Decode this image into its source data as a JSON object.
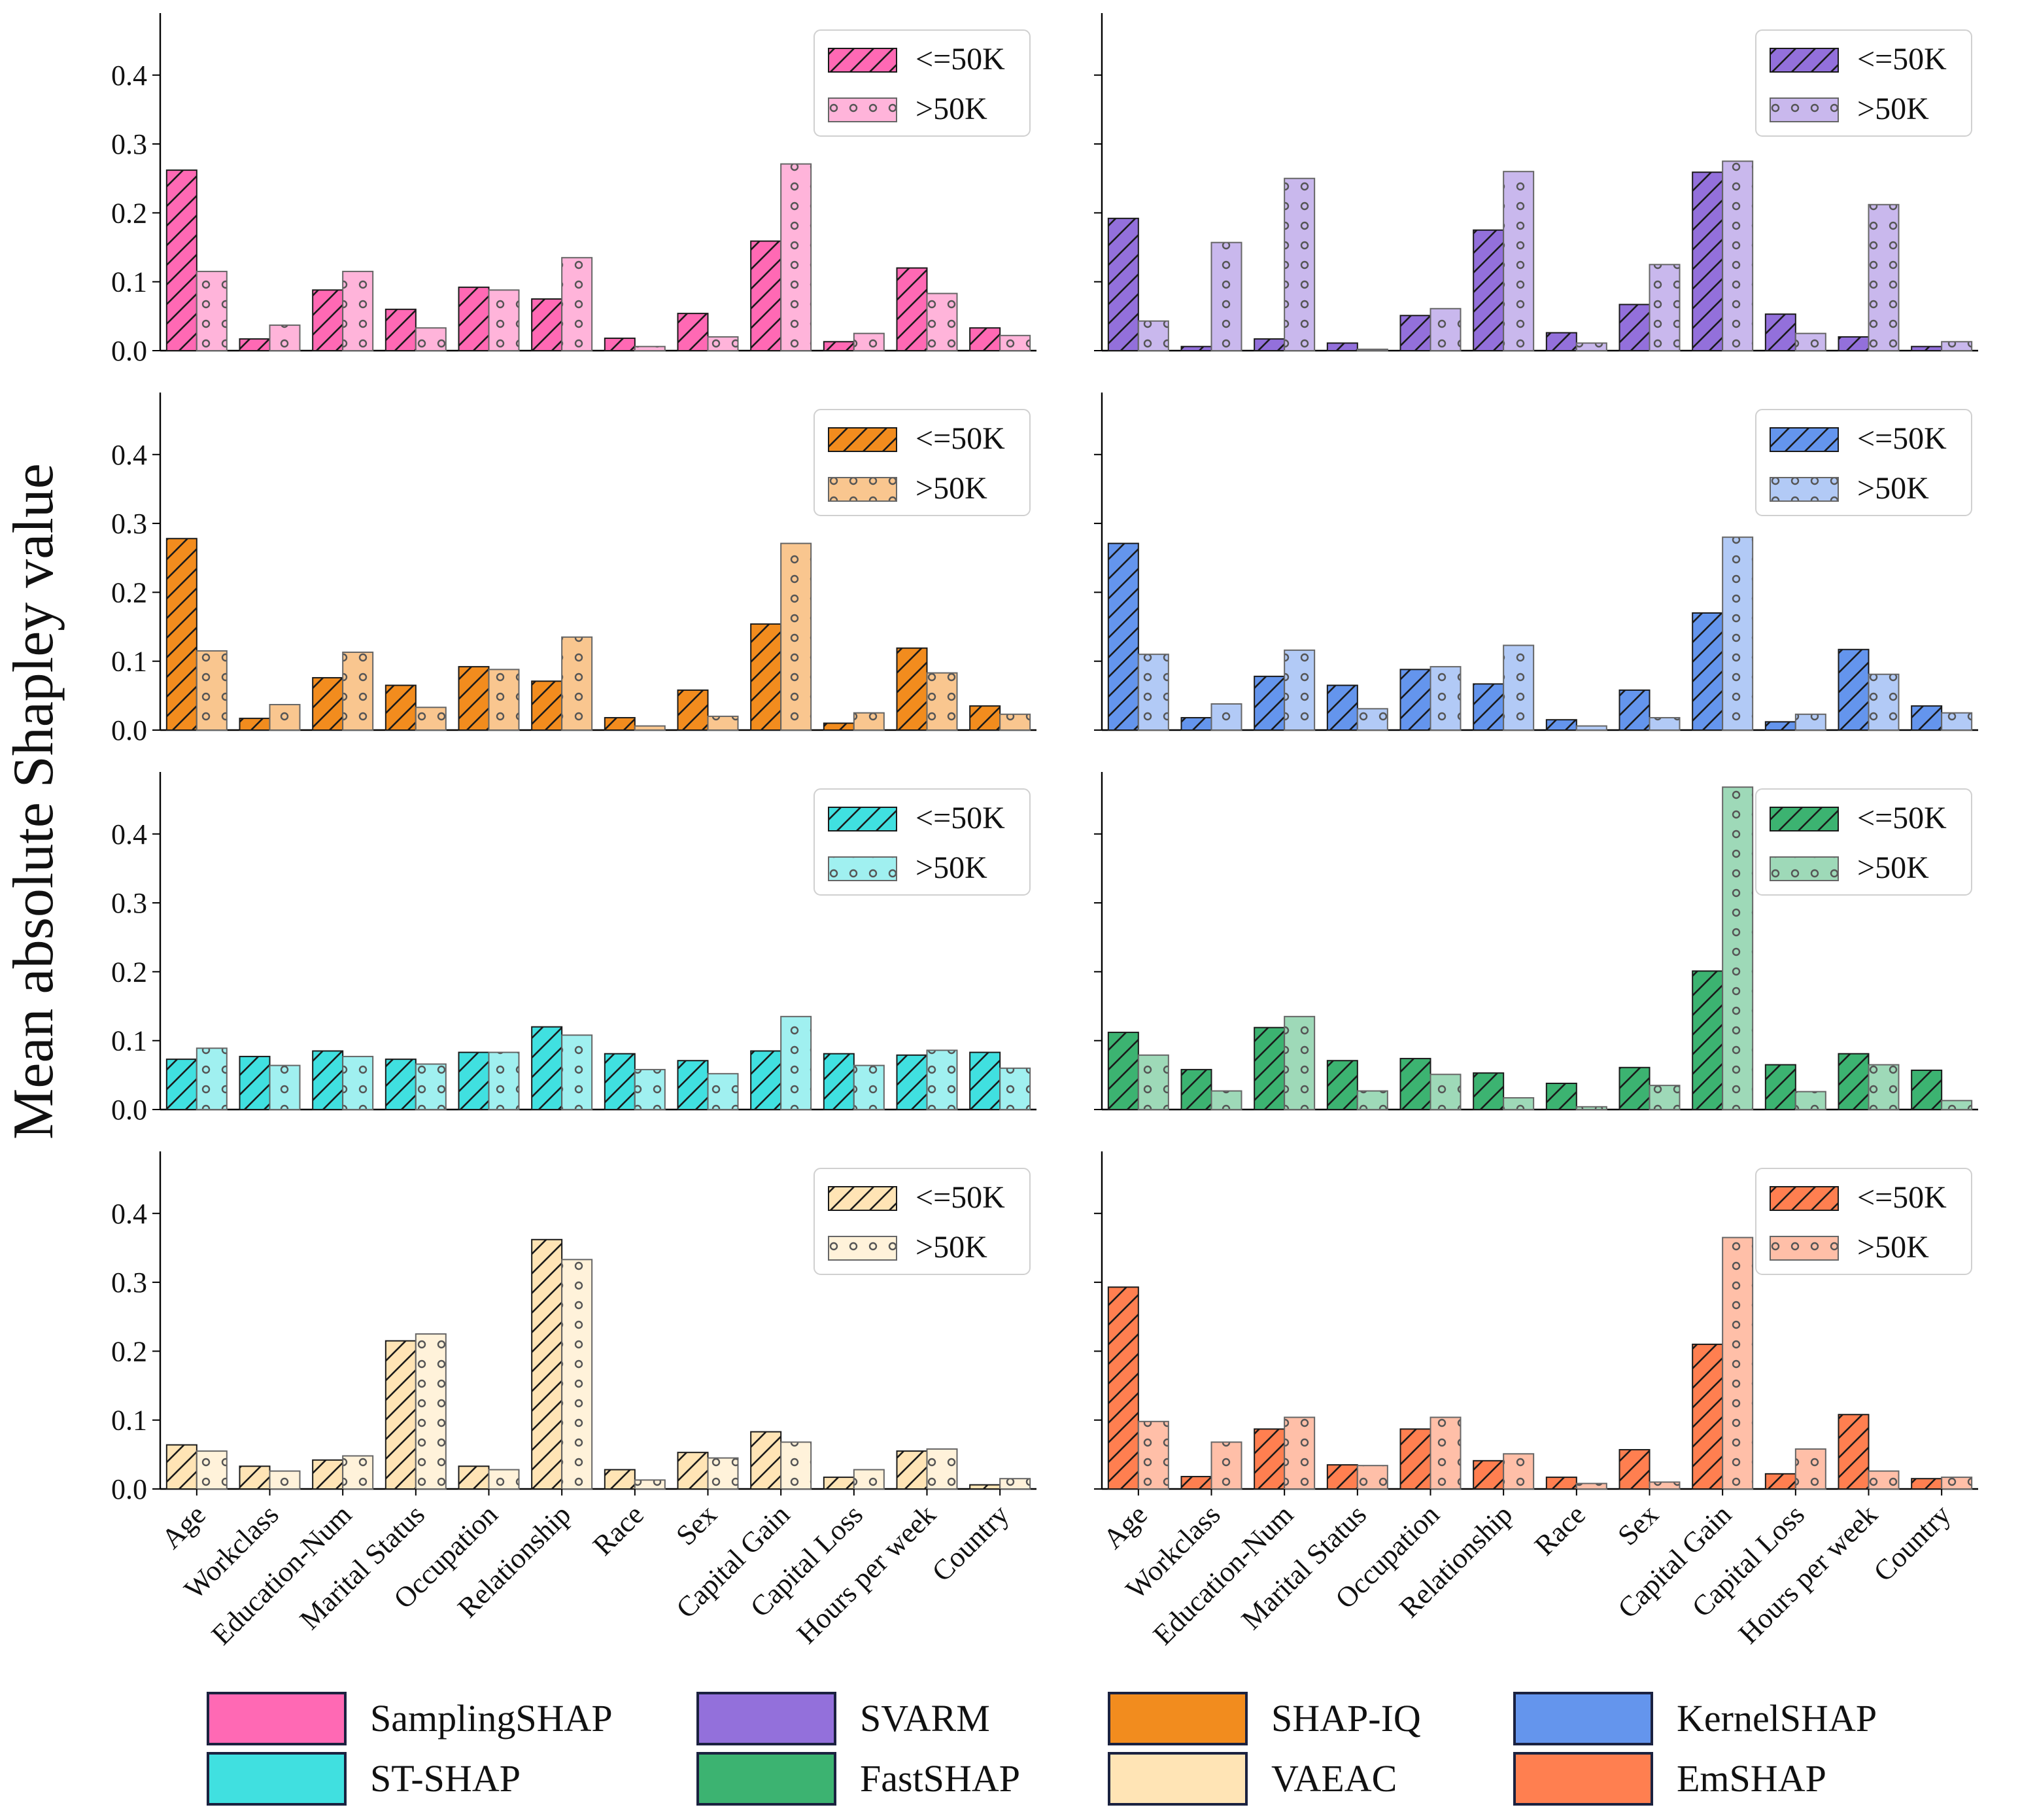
{
  "chart_data": {
    "type": "bar",
    "ylabel": "Mean absolute Shapley value",
    "categories": [
      "Age",
      "Workclass",
      "Education-Num",
      "Marital Status",
      "Occupation",
      "Relationship",
      "Race",
      "Sex",
      "Capital Gain",
      "Capital Loss",
      "Hours per week",
      "Country"
    ],
    "ylim": [
      0,
      0.49
    ],
    "yticks": [
      "0.0",
      "0.1",
      "0.2",
      "0.3",
      "0.4"
    ],
    "legend_labels": [
      "<=50K",
      ">50K"
    ],
    "methods": [
      {
        "name": "SamplingSHAP",
        "color": "#ff69b4",
        "series": [
          {
            "name": "<=50K",
            "values": [
              0.262,
              0.017,
              0.088,
              0.06,
              0.092,
              0.075,
              0.018,
              0.054,
              0.159,
              0.013,
              0.12,
              0.033
            ]
          },
          {
            "name": ">50K",
            "values": [
              0.115,
              0.037,
              0.115,
              0.033,
              0.088,
              0.135,
              0.006,
              0.02,
              0.271,
              0.025,
              0.083,
              0.022
            ]
          }
        ]
      },
      {
        "name": "SVARM",
        "color": "#9370db",
        "series": [
          {
            "name": "<=50K",
            "values": [
              0.192,
              0.006,
              0.017,
              0.011,
              0.051,
              0.175,
              0.026,
              0.067,
              0.259,
              0.053,
              0.02,
              0.006
            ]
          },
          {
            "name": ">50K",
            "values": [
              0.043,
              0.157,
              0.25,
              0.002,
              0.061,
              0.26,
              0.011,
              0.125,
              0.275,
              0.025,
              0.212,
              0.013
            ]
          }
        ]
      },
      {
        "name": "SHAP-IQ",
        "color": "#f28c1e",
        "series": [
          {
            "name": "<=50K",
            "values": [
              0.278,
              0.017,
              0.076,
              0.065,
              0.092,
              0.071,
              0.018,
              0.058,
              0.154,
              0.01,
              0.119,
              0.035
            ]
          },
          {
            "name": ">50K",
            "values": [
              0.115,
              0.037,
              0.113,
              0.033,
              0.088,
              0.135,
              0.006,
              0.02,
              0.271,
              0.025,
              0.083,
              0.023
            ]
          }
        ]
      },
      {
        "name": "KernelSHAP",
        "color": "#6495ed",
        "series": [
          {
            "name": "<=50K",
            "values": [
              0.271,
              0.018,
              0.078,
              0.065,
              0.088,
              0.067,
              0.015,
              0.058,
              0.17,
              0.012,
              0.117,
              0.035
            ]
          },
          {
            "name": ">50K",
            "values": [
              0.11,
              0.038,
              0.116,
              0.031,
              0.092,
              0.123,
              0.006,
              0.018,
              0.28,
              0.023,
              0.081,
              0.025
            ]
          }
        ]
      },
      {
        "name": "ST-SHAP",
        "color": "#40e0e0",
        "series": [
          {
            "name": "<=50K",
            "values": [
              0.073,
              0.077,
              0.085,
              0.073,
              0.083,
              0.12,
              0.081,
              0.071,
              0.085,
              0.081,
              0.079,
              0.083
            ]
          },
          {
            "name": ">50K",
            "values": [
              0.089,
              0.064,
              0.077,
              0.066,
              0.083,
              0.108,
              0.058,
              0.052,
              0.135,
              0.064,
              0.086,
              0.06
            ]
          }
        ]
      },
      {
        "name": "FastSHAP",
        "color": "#3cb371",
        "series": [
          {
            "name": "<=50K",
            "values": [
              0.112,
              0.058,
              0.119,
              0.071,
              0.074,
              0.053,
              0.038,
              0.061,
              0.201,
              0.065,
              0.081,
              0.057
            ]
          },
          {
            "name": ">50K",
            "values": [
              0.079,
              0.027,
              0.135,
              0.027,
              0.051,
              0.017,
              0.004,
              0.035,
              0.468,
              0.026,
              0.065,
              0.013
            ]
          }
        ]
      },
      {
        "name": "VAEAC",
        "color": "#ffe4b5",
        "series": [
          {
            "name": "<=50K",
            "values": [
              0.064,
              0.033,
              0.042,
              0.215,
              0.033,
              0.362,
              0.028,
              0.053,
              0.083,
              0.017,
              0.055,
              0.006
            ]
          },
          {
            "name": ">50K",
            "values": [
              0.055,
              0.026,
              0.048,
              0.225,
              0.028,
              0.333,
              0.013,
              0.045,
              0.068,
              0.028,
              0.058,
              0.015
            ]
          }
        ]
      },
      {
        "name": "EmSHAP",
        "color": "#ff7f50",
        "series": [
          {
            "name": "<=50K",
            "values": [
              0.293,
              0.018,
              0.087,
              0.035,
              0.087,
              0.041,
              0.017,
              0.057,
              0.21,
              0.022,
              0.108,
              0.015
            ]
          },
          {
            "name": ">50K",
            "values": [
              0.098,
              0.068,
              0.104,
              0.034,
              0.104,
              0.051,
              0.008,
              0.01,
              0.365,
              0.058,
              0.026,
              0.017
            ]
          }
        ]
      }
    ]
  }
}
